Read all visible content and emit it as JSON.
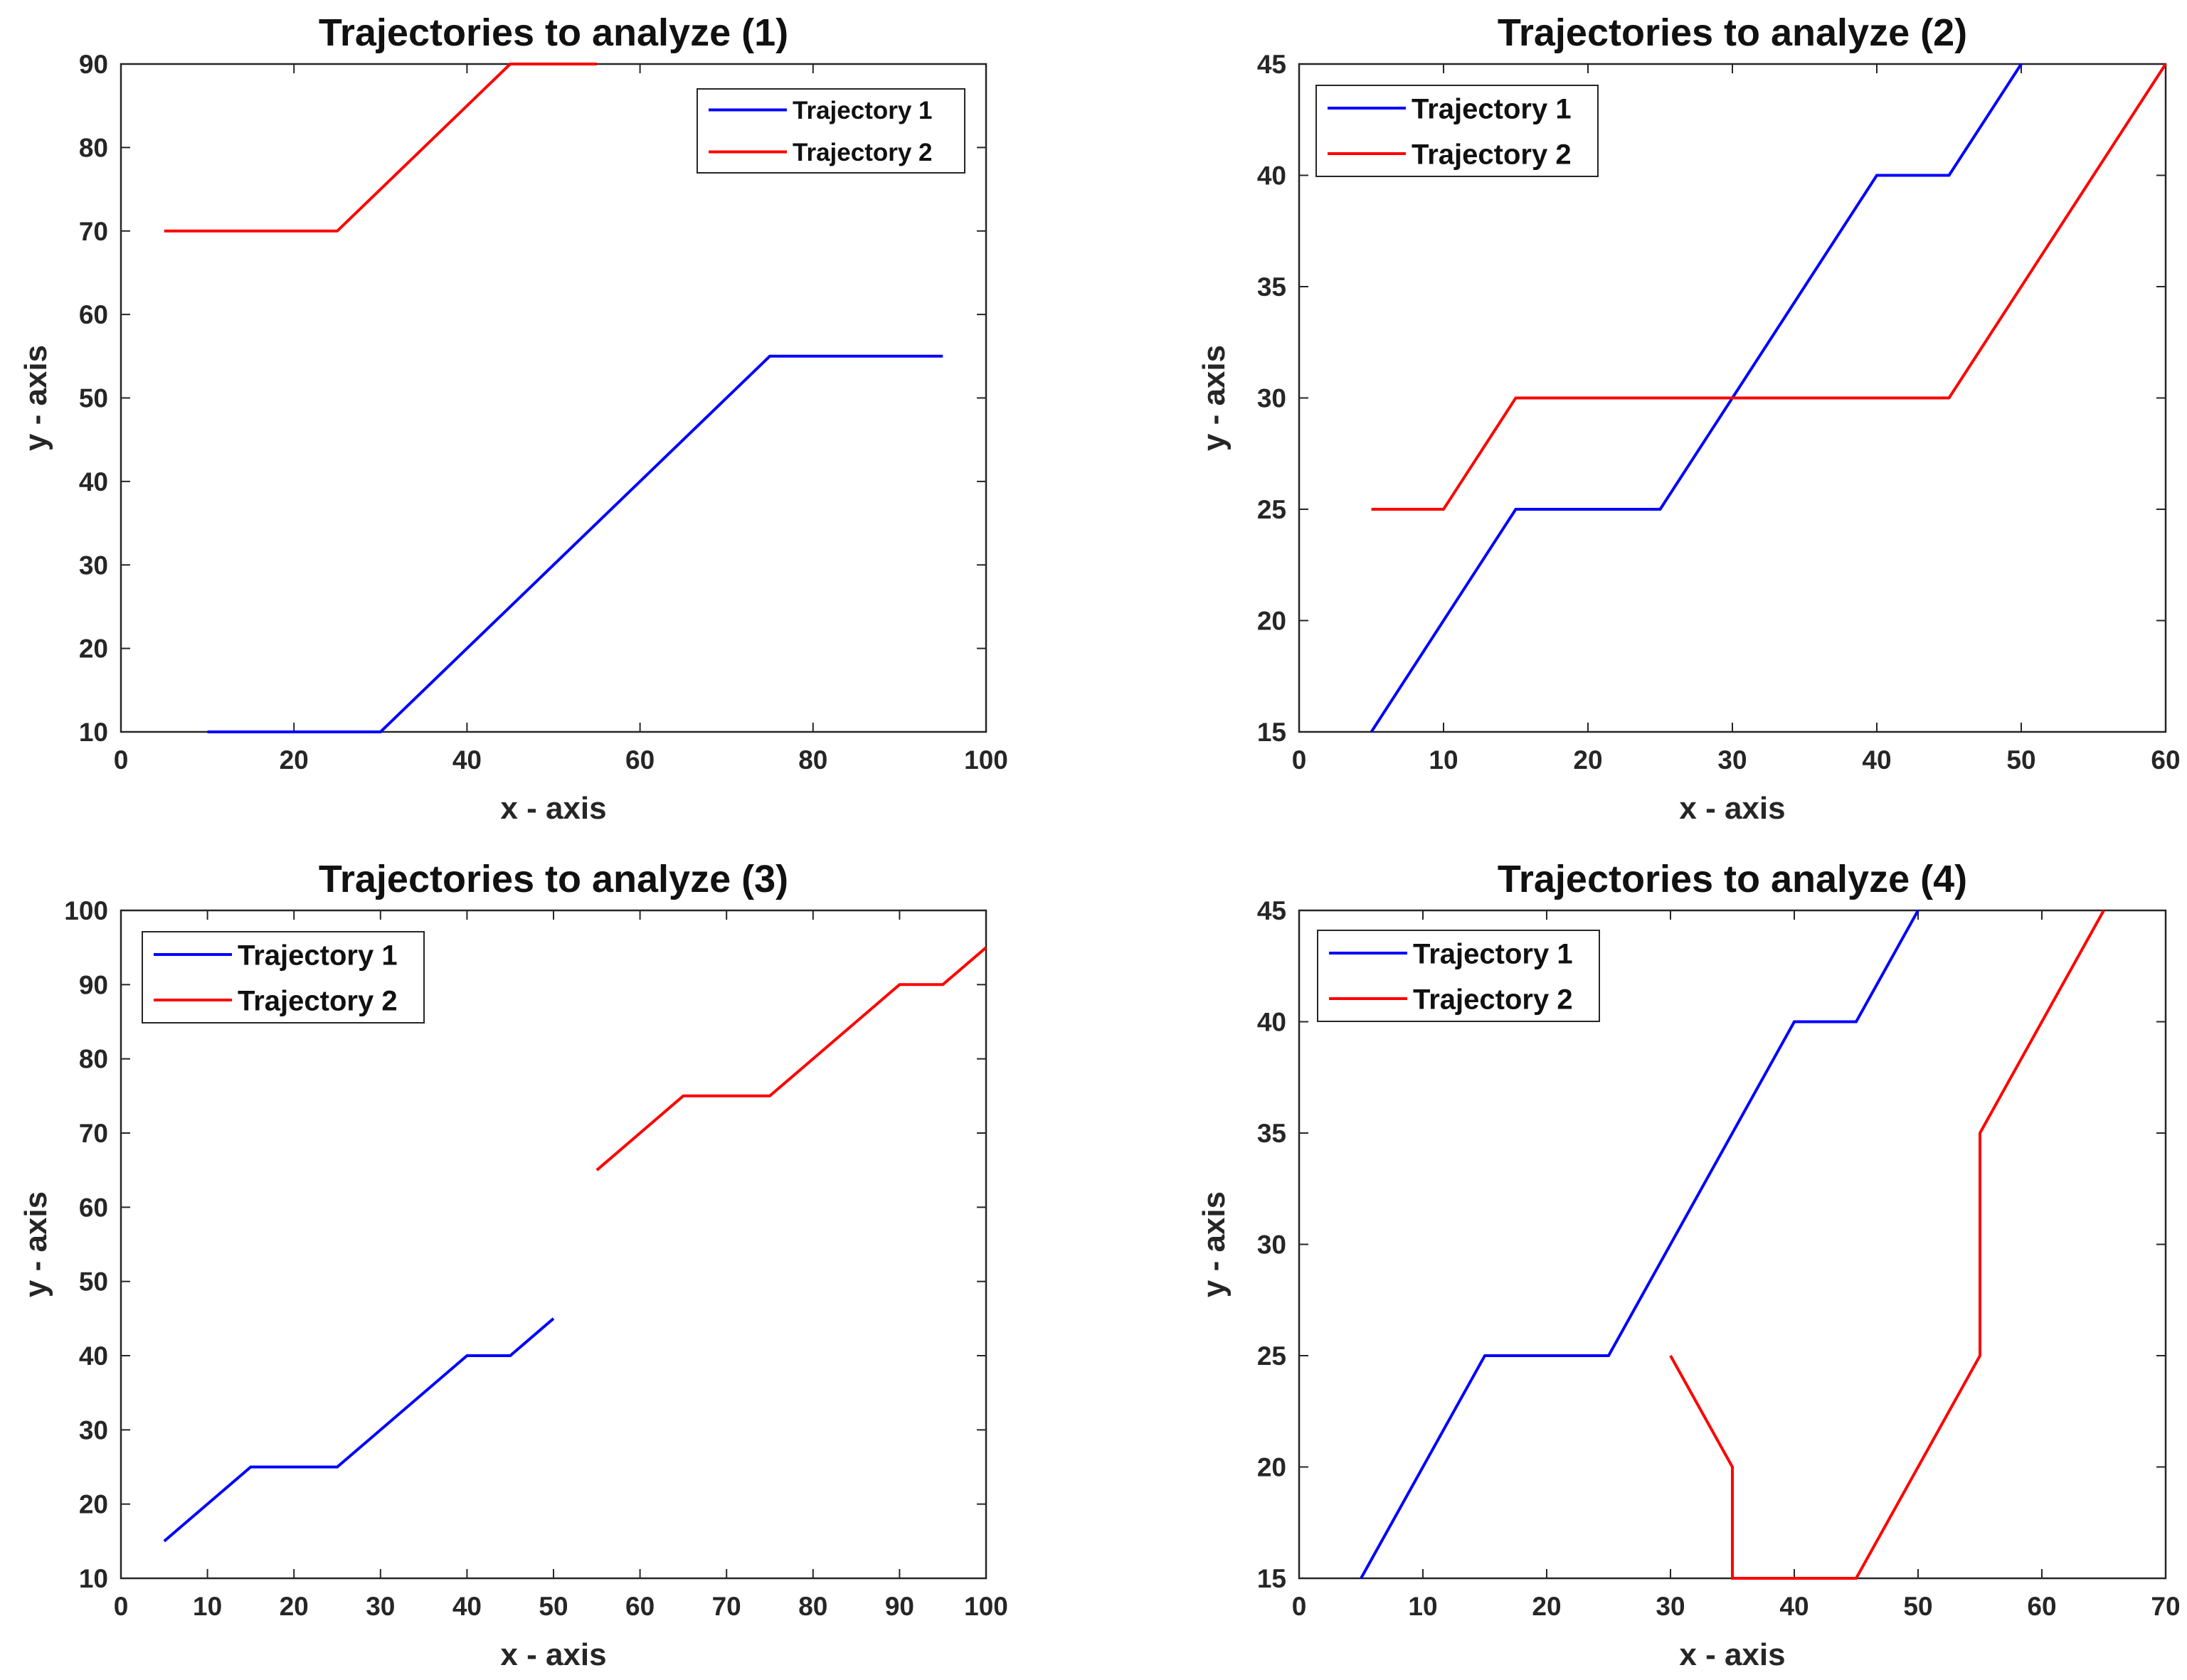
{
  "chart_data": [
    {
      "type": "line",
      "title": "Trajectories to analyze (1)",
      "xlabel": "x - axis",
      "ylabel": "y - axis",
      "xlim": [
        0,
        100
      ],
      "ylim": [
        10,
        90
      ],
      "xticks": [
        "0",
        "20",
        "40",
        "60",
        "80",
        "100"
      ],
      "yticks": [
        "10",
        "20",
        "30",
        "40",
        "50",
        "60",
        "70",
        "80",
        "90"
      ],
      "grid": false,
      "legend_position": "top-right",
      "series": [
        {
          "name": "Trajectory 1",
          "color": "#0000ff",
          "x": [
            10,
            30,
            75,
            95
          ],
          "y": [
            10,
            10,
            55,
            55
          ]
        },
        {
          "name": "Trajectory 2",
          "color": "#ff0000",
          "x": [
            5,
            25,
            45,
            55
          ],
          "y": [
            70,
            70,
            90,
            90
          ]
        }
      ]
    },
    {
      "type": "line",
      "title": "Trajectories to analyze (2)",
      "xlabel": "x - axis",
      "ylabel": "y - axis",
      "xlim": [
        0,
        60
      ],
      "ylim": [
        15,
        45
      ],
      "xticks": [
        "0",
        "10",
        "20",
        "30",
        "40",
        "50",
        "60"
      ],
      "yticks": [
        "15",
        "20",
        "25",
        "30",
        "35",
        "40",
        "45"
      ],
      "grid": false,
      "legend_position": "top-left",
      "series": [
        {
          "name": "Trajectory 1",
          "color": "#0000ff",
          "x": [
            5,
            15,
            25,
            40,
            45,
            50
          ],
          "y": [
            15,
            25,
            25,
            40,
            40,
            45
          ]
        },
        {
          "name": "Trajectory 2",
          "color": "#ff0000",
          "x": [
            5,
            10,
            15,
            45,
            60
          ],
          "y": [
            25,
            25,
            30,
            30,
            45
          ]
        }
      ]
    },
    {
      "type": "line",
      "title": "Trajectories to analyze (3)",
      "xlabel": "x - axis",
      "ylabel": "y - axis",
      "xlim": [
        0,
        100
      ],
      "ylim": [
        10,
        100
      ],
      "xticks": [
        "0",
        "10",
        "20",
        "30",
        "40",
        "50",
        "60",
        "70",
        "80",
        "90",
        "100"
      ],
      "yticks": [
        "10",
        "20",
        "30",
        "40",
        "50",
        "60",
        "70",
        "80",
        "90",
        "100"
      ],
      "grid": false,
      "legend_position": "top-left",
      "series": [
        {
          "name": "Trajectory 1",
          "color": "#0000ff",
          "x": [
            5,
            15,
            25,
            40,
            45,
            50
          ],
          "y": [
            15,
            25,
            25,
            40,
            40,
            45
          ]
        },
        {
          "name": "Trajectory 2",
          "color": "#ff0000",
          "x": [
            55,
            65,
            75,
            90,
            95,
            100
          ],
          "y": [
            65,
            75,
            75,
            90,
            90,
            95
          ]
        }
      ]
    },
    {
      "type": "line",
      "title": "Trajectories to analyze (4)",
      "xlabel": "x - axis",
      "ylabel": "y - axis",
      "xlim": [
        0,
        70
      ],
      "ylim": [
        15,
        45
      ],
      "xticks": [
        "0",
        "10",
        "20",
        "30",
        "40",
        "50",
        "60",
        "70"
      ],
      "yticks": [
        "15",
        "20",
        "25",
        "30",
        "35",
        "40",
        "45"
      ],
      "grid": false,
      "legend_position": "top-left",
      "series": [
        {
          "name": "Trajectory 1",
          "color": "#0000ff",
          "x": [
            5,
            15,
            25,
            40,
            45,
            50
          ],
          "y": [
            15,
            25,
            25,
            40,
            40,
            45
          ]
        },
        {
          "name": "Trajectory 2",
          "color": "#ff0000",
          "x": [
            30,
            35,
            35,
            45,
            55,
            55,
            65
          ],
          "y": [
            25,
            20,
            15,
            15,
            25,
            35,
            45
          ]
        }
      ]
    }
  ]
}
